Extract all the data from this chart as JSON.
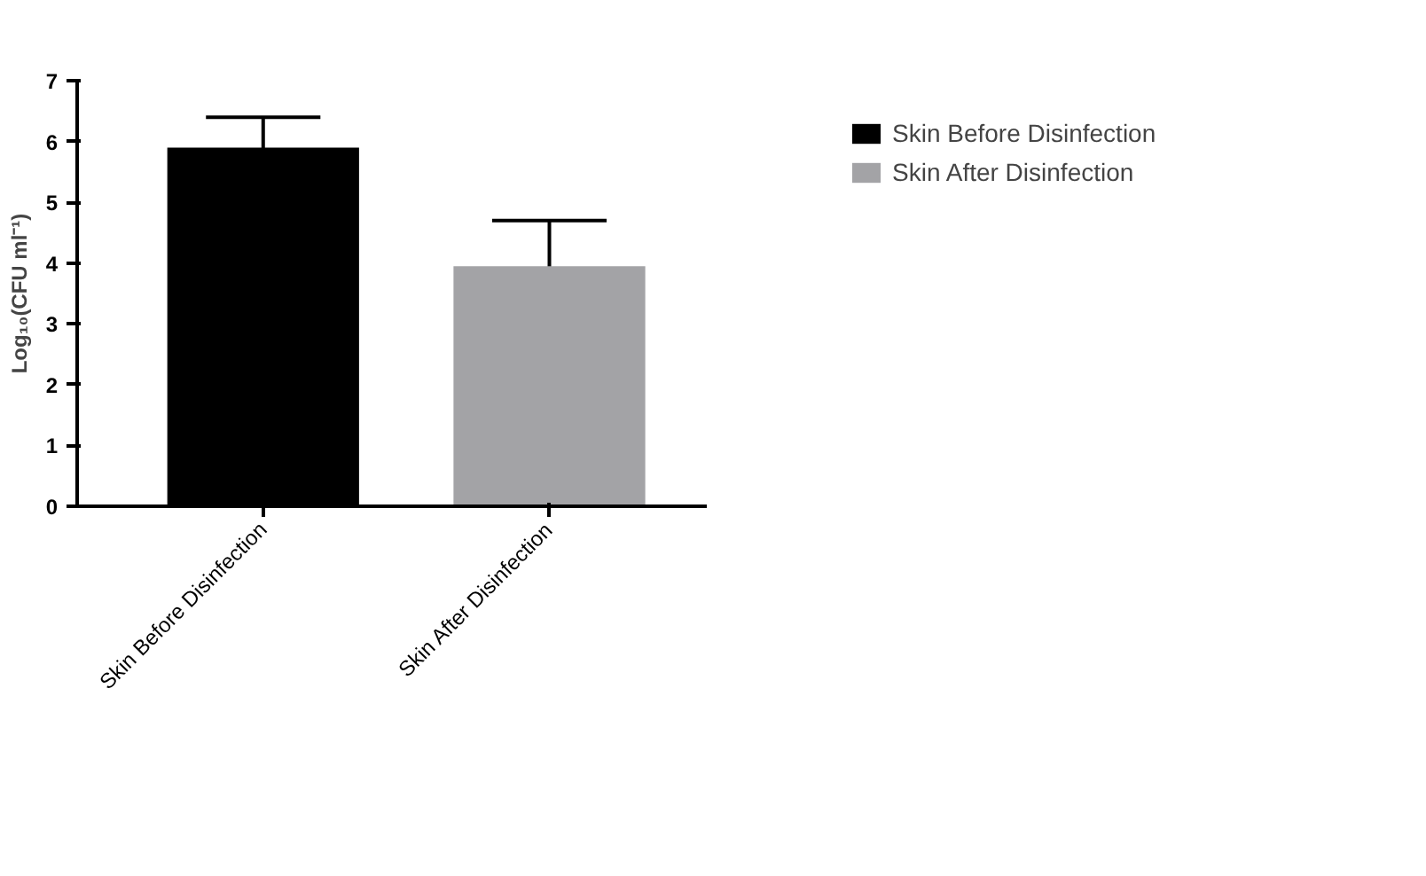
{
  "chart_data": {
    "type": "bar",
    "ylabel": "Log₁₀(CFU ml⁻¹)",
    "categories": [
      "Skin Before Disinfection",
      "Skin After Disinfection"
    ],
    "series": [
      {
        "name": "Skin Before Disinfection",
        "color": "#000000",
        "values": [
          5.9,
          null
        ],
        "errors": [
          0.5,
          null
        ]
      },
      {
        "name": "Skin After Disinfection",
        "color": "#a3a3a6",
        "values": [
          null,
          3.95
        ],
        "errors": [
          null,
          0.75
        ]
      }
    ],
    "ylim": [
      0,
      7
    ],
    "yticks": [
      0,
      1,
      2,
      3,
      4,
      5,
      6,
      7
    ],
    "grid": false,
    "legend": "top right"
  }
}
